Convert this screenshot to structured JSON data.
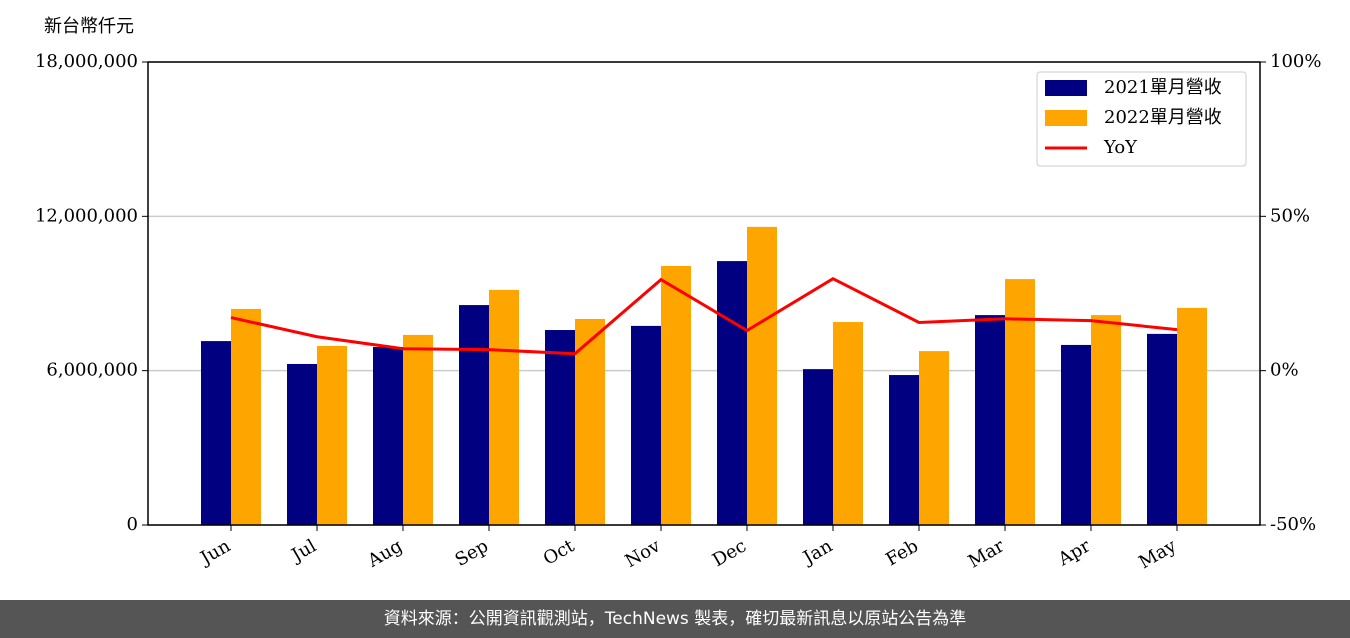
{
  "chart_data": {
    "type": "bar",
    "y_label": "新台幣仟元",
    "categories": [
      "Jun",
      "Jul",
      "Aug",
      "Sep",
      "Oct",
      "Nov",
      "Dec",
      "Jan",
      "Feb",
      "Mar",
      "Apr",
      "May"
    ],
    "series": [
      {
        "name": "2021單月營收",
        "type": "bar",
        "color": "#000080",
        "values": [
          7150000,
          6260000,
          6920000,
          8550000,
          7580000,
          7740000,
          10260000,
          6060000,
          5830000,
          8160000,
          7000000,
          7430000
        ]
      },
      {
        "name": "2022單月營收",
        "type": "bar",
        "color": "#ffa500",
        "values": [
          8400000,
          6960000,
          7390000,
          9140000,
          8010000,
          10070000,
          11590000,
          7890000,
          6760000,
          9560000,
          8160000,
          8440000
        ]
      },
      {
        "name": "YoY",
        "type": "line",
        "axis": "y2",
        "color": "#ff0000",
        "values": [
          17.2,
          11.0,
          7.1,
          6.8,
          5.5,
          29.5,
          13.0,
          29.8,
          15.6,
          16.8,
          16.2,
          13.3
        ]
      }
    ],
    "ylim": [
      0,
      18000000
    ],
    "yticks": [
      0,
      {
        "value": 6000000,
        "label": "6,000,000"
      },
      {
        "value": 12000000,
        "label": "12,000,000"
      },
      {
        "value": 18000000,
        "label": "18,000,000"
      }
    ],
    "y2lim": [
      -50,
      100
    ],
    "y2ticks": [
      {
        "value": -50,
        "label": "-50%"
      },
      {
        "value": 0,
        "label": "0%"
      },
      {
        "value": 50,
        "label": "50%"
      },
      {
        "value": 100,
        "label": "100%"
      }
    ],
    "grid": true,
    "legend": "upper right"
  },
  "footer": "資料來源：公開資訊觀測站，TechNews 製表，確切最新訊息以原站公告為準"
}
